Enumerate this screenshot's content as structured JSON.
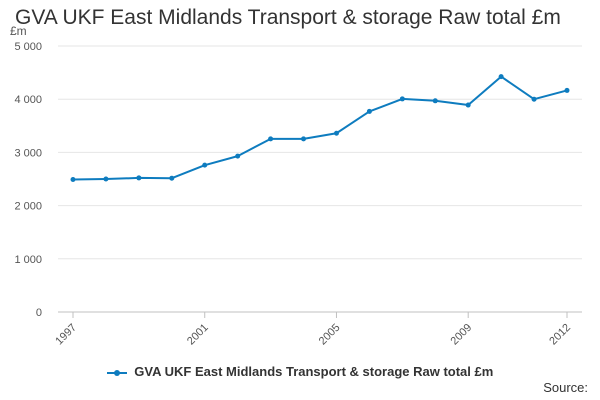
{
  "chart_data": {
    "type": "line",
    "title": "GVA UKF East Midlands Transport & storage Raw total £m",
    "y_unit": "£m",
    "source_label": "Source:",
    "x": [
      1997,
      1998,
      1999,
      2000,
      2001,
      2002,
      2003,
      2004,
      2005,
      2006,
      2007,
      2008,
      2009,
      2010,
      2011,
      2012
    ],
    "x_tick_labels": [
      "1997",
      "2001",
      "2005",
      "2009",
      "2012"
    ],
    "y_tick_labels": [
      "0",
      "1 000",
      "2 000",
      "3 000",
      "4 000",
      "5 000"
    ],
    "y_ticks": [
      0,
      1000,
      2000,
      3000,
      4000,
      5000
    ],
    "ylim": [
      0,
      5000
    ],
    "grid": true,
    "legend_position": "bottom",
    "series": [
      {
        "name": "GVA UKF East Midlands Transport & storage Raw total £m",
        "color": "#0e7cbf",
        "values": [
          2490,
          2500,
          2520,
          2515,
          2760,
          2930,
          3255,
          3255,
          3360,
          3770,
          4005,
          3970,
          3890,
          4425,
          4000,
          4165
        ]
      }
    ]
  }
}
